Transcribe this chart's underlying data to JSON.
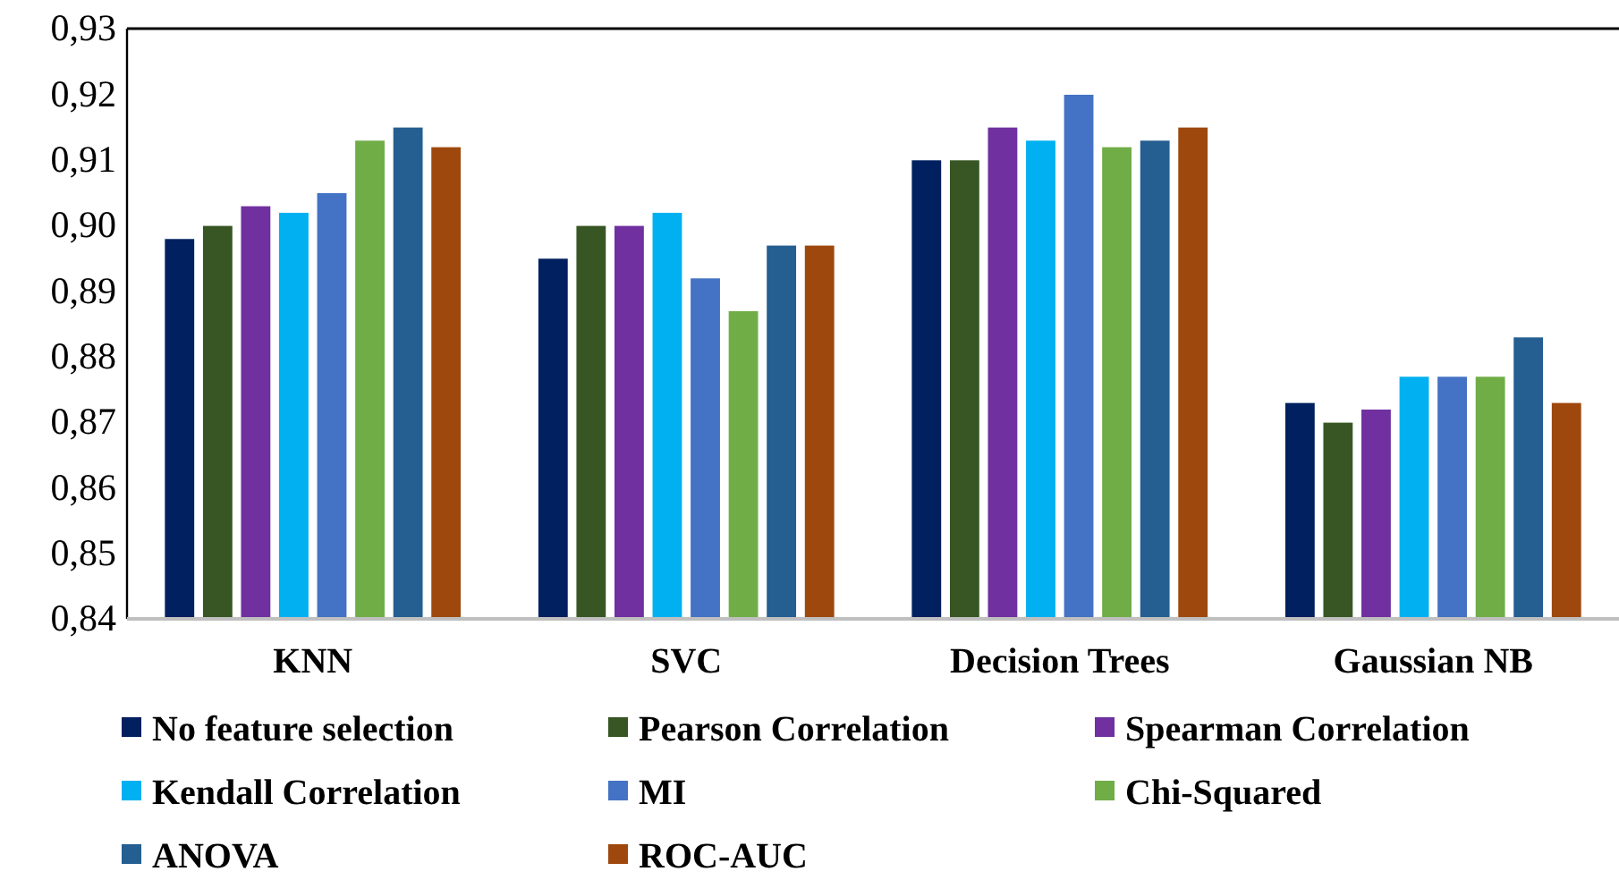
{
  "chart_data": {
    "type": "bar",
    "categories": [
      "KNN",
      "SVC",
      "Decision Trees",
      "Gaussian NB"
    ],
    "series": [
      {
        "name": "No feature selection",
        "color": "#002060",
        "values": [
          0.898,
          0.895,
          0.91,
          0.873
        ]
      },
      {
        "name": "Pearson Correlation",
        "color": "#375623",
        "values": [
          0.9,
          0.9,
          0.91,
          0.87
        ]
      },
      {
        "name": "Spearman Correlation",
        "color": "#7030a0",
        "values": [
          0.903,
          0.9,
          0.915,
          0.872
        ]
      },
      {
        "name": "Kendall Correlation",
        "color": "#00b0f0",
        "values": [
          0.902,
          0.902,
          0.913,
          0.877
        ]
      },
      {
        "name": "MI",
        "color": "#4472c4",
        "values": [
          0.905,
          0.892,
          0.92,
          0.877
        ]
      },
      {
        "name": "Chi-Squared",
        "color": "#70ad47",
        "values": [
          0.913,
          0.887,
          0.912,
          0.877
        ]
      },
      {
        "name": "ANOVA",
        "color": "#255e91",
        "values": [
          0.915,
          0.897,
          0.913,
          0.883
        ]
      },
      {
        "name": "ROC-AUC",
        "color": "#9e480e",
        "values": [
          0.912,
          0.897,
          0.915,
          0.873
        ]
      }
    ],
    "ylim": [
      0.84,
      0.93
    ],
    "yticks": [
      {
        "value": 0.84,
        "label": "0,84"
      },
      {
        "value": 0.85,
        "label": "0,85"
      },
      {
        "value": 0.86,
        "label": "0,86"
      },
      {
        "value": 0.87,
        "label": "0,87"
      },
      {
        "value": 0.88,
        "label": "0,88"
      },
      {
        "value": 0.89,
        "label": "0,89"
      },
      {
        "value": 0.9,
        "label": "0,90"
      },
      {
        "value": 0.91,
        "label": "0,91"
      },
      {
        "value": 0.92,
        "label": "0,92"
      },
      {
        "value": 0.93,
        "label": "0,93"
      }
    ],
    "grid": false,
    "legend": "bottom"
  }
}
